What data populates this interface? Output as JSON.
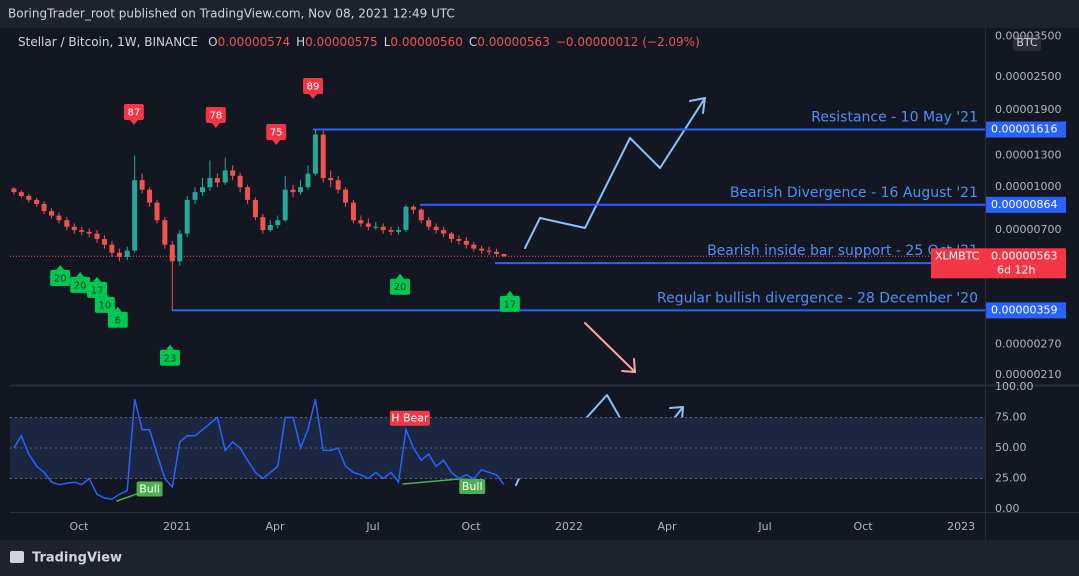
{
  "header": {
    "published": "BoringTrader_root published on TradingView.com, Nov 08, 2021 12:49 UTC",
    "symbol": "Stellar / Bitcoin, 1W, BINANCE",
    "ohlc": [
      {
        "key": "O",
        "value": "0.00000574"
      },
      {
        "key": "H",
        "value": "0.00000575"
      },
      {
        "key": "L",
        "value": "0.00000560"
      },
      {
        "key": "C",
        "value": "0.00000563"
      }
    ],
    "change": "−0.00000012 (−2.09%)",
    "currency": "BTC",
    "footer": "TradingView"
  },
  "chart_data": [
    {
      "type": "candlestick",
      "log_scale": true,
      "grid": false,
      "up_color": "#26a69a",
      "down_color": "#ef5350",
      "xlim": [
        2020.574,
        2023.061
      ],
      "ylim": [
        1.93e-06,
        3.76e-05
      ],
      "yticks": [
        {
          "value": 3.5e-05,
          "label": "0.00003500"
        },
        {
          "value": 2.5e-05,
          "label": "0.00002500"
        },
        {
          "value": 1.9e-05,
          "label": "0.00001900"
        },
        {
          "value": 1.3e-05,
          "label": "0.00001300"
        },
        {
          "value": 1e-05,
          "label": "0.00001000"
        },
        {
          "value": 7e-06,
          "label": "0.00000700"
        },
        {
          "value": 2.7e-06,
          "label": "0.00000270"
        },
        {
          "value": 2.1e-06,
          "label": "0.00000210"
        }
      ],
      "x": [
        2020.584,
        2020.603,
        2020.622,
        2020.642,
        2020.661,
        2020.68,
        2020.699,
        2020.719,
        2020.738,
        2020.757,
        2020.776,
        2020.796,
        2020.815,
        2020.834,
        2020.853,
        2020.873,
        2020.892,
        2020.911,
        2020.93,
        2020.949,
        2020.969,
        2020.988,
        2021.007,
        2021.026,
        2021.046,
        2021.065,
        2021.084,
        2021.103,
        2021.123,
        2021.142,
        2021.161,
        2021.18,
        2021.2,
        2021.219,
        2021.238,
        2021.257,
        2021.276,
        2021.296,
        2021.315,
        2021.334,
        2021.353,
        2021.373,
        2021.392,
        2021.411,
        2021.43,
        2021.45,
        2021.469,
        2021.488,
        2021.507,
        2021.526,
        2021.546,
        2021.565,
        2021.584,
        2021.603,
        2021.623,
        2021.642,
        2021.661,
        2021.68,
        2021.7,
        2021.719,
        2021.738,
        2021.757,
        2021.777,
        2021.796,
        2021.815,
        2021.834
      ],
      "open": [
        9.9e-06,
        9.6e-06,
        9.3e-06,
        9e-06,
        8.7e-06,
        8.2e-06,
        7.9e-06,
        7.6e-06,
        7.2e-06,
        7e-06,
        6.9e-06,
        6.8e-06,
        6.5e-06,
        6.2e-06,
        5.8e-06,
        5.6e-06,
        5.9e-06,
        1.06e-05,
        9.8e-06,
        8.8e-06,
        7.6e-06,
        6.2e-06,
        5.4e-06,
        6.8e-06,
        9e-06,
        9.6e-06,
        1e-05,
        1.08e-05,
        1.04e-05,
        1.15e-05,
        1.1e-05,
        1e-05,
        9e-06,
        7.8e-06,
        7e-06,
        7.3e-06,
        7.6e-06,
        9.8e-06,
        9.6e-06,
        1e-05,
        1.12e-05,
        1.55e-05,
        1.08e-05,
        1.06e-05,
        9.8e-06,
        8.8e-06,
        7.6e-06,
        7.4e-06,
        7.2e-06,
        7.2e-06,
        7e-06,
        6.9e-06,
        7e-06,
        8.5e-06,
        8.3e-06,
        7.6e-06,
        7.2e-06,
        7e-06,
        6.8e-06,
        6.5e-06,
        6.4e-06,
        6.2e-06,
        6e-06,
        5.9e-06,
        5.85e-06,
        5.74e-06
      ],
      "high": [
        1e-05,
        9.75e-06,
        9.45e-06,
        9.15e-06,
        8.9e-06,
        8.4e-06,
        8.1e-06,
        7.8e-06,
        7.4e-06,
        7.2e-06,
        7.1e-06,
        7e-06,
        6.7e-06,
        6.4e-06,
        6e-06,
        6.1e-06,
        1.3e-05,
        1.12e-05,
        1e-05,
        9e-06,
        7.8e-06,
        6.4e-06,
        7e-06,
        9.3e-06,
        1e-05,
        1.08e-05,
        1.25e-05,
        1.12e-05,
        1.28e-05,
        1.2e-05,
        1.13e-05,
        1.02e-05,
        9.2e-06,
        8e-06,
        7.6e-06,
        7.9e-06,
        1.1e-05,
        1.02e-05,
        1.06e-05,
        1.2e-05,
        1.616e-05,
        1.6e-05,
        1.15e-05,
        1.1e-05,
        1e-05,
        9e-06,
        7.9e-06,
        7.7e-06,
        7.5e-06,
        7.4e-06,
        7.2e-06,
        7.2e-06,
        8.64e-06,
        8.64e-06,
        8.4e-06,
        7.8e-06,
        7.4e-06,
        7.2e-06,
        6.9e-06,
        6.7e-06,
        6.6e-06,
        6.35e-06,
        6.15e-06,
        6.1e-06,
        6e-06,
        5.75e-06
      ],
      "low": [
        9.4e-06,
        9.15e-06,
        8.8e-06,
        8.5e-06,
        8e-06,
        7.7e-06,
        7.4e-06,
        7e-06,
        6.8e-06,
        6.7e-06,
        6.6e-06,
        6.3e-06,
        6e-06,
        5.6e-06,
        5.4e-06,
        5.45e-06,
        5.8e-06,
        9.5e-06,
        8.5e-06,
        7.4e-06,
        6e-06,
        3.59e-06,
        5.2e-06,
        6.6e-06,
        8.7e-06,
        9.3e-06,
        9.7e-06,
        1e-05,
        1.02e-05,
        1.06e-05,
        9.6e-06,
        8.7e-06,
        7.6e-06,
        6.8e-06,
        6.9e-06,
        7.1e-06,
        7.5e-06,
        9.2e-06,
        9.4e-06,
        9.8e-06,
        1.1e-05,
        1.04e-05,
        1e-05,
        9.5e-06,
        8.5e-06,
        7.4e-06,
        7.2e-06,
        7e-06,
        7e-06,
        6.8e-06,
        6.7e-06,
        6.75e-06,
        6.9e-06,
        8e-06,
        7.4e-06,
        7e-06,
        6.8e-06,
        6.6e-06,
        6.3e-06,
        6.2e-06,
        6e-06,
        5.85e-06,
        5.75e-06,
        5.7e-06,
        5.6e-06,
        5.6e-06
      ],
      "close": [
        9.6e-06,
        9.3e-06,
        9e-06,
        8.7e-06,
        8.2e-06,
        7.9e-06,
        7.6e-06,
        7.2e-06,
        7e-06,
        6.9e-06,
        6.8e-06,
        6.5e-06,
        6.2e-06,
        5.8e-06,
        5.6e-06,
        5.9e-06,
        1.06e-05,
        9.8e-06,
        8.8e-06,
        7.6e-06,
        6.2e-06,
        5.4e-06,
        6.8e-06,
        9e-06,
        9.6e-06,
        1e-05,
        1.08e-05,
        1.04e-05,
        1.15e-05,
        1.1e-05,
        1e-05,
        9e-06,
        7.8e-06,
        7e-06,
        7.3e-06,
        7.6e-06,
        9.8e-06,
        9.6e-06,
        1e-05,
        1.12e-05,
        1.55e-05,
        1.08e-05,
        1.06e-05,
        9.8e-06,
        8.8e-06,
        7.6e-06,
        7.4e-06,
        7.2e-06,
        7.2e-06,
        7e-06,
        6.9e-06,
        7e-06,
        8.5e-06,
        8.3e-06,
        7.6e-06,
        7.2e-06,
        7e-06,
        6.8e-06,
        6.5e-06,
        6.4e-06,
        6.2e-06,
        6e-06,
        5.9e-06,
        5.85e-06,
        5.74e-06,
        5.63e-06
      ],
      "price_tag": {
        "symbol": "XLMBTC",
        "countdown": "6d 12h"
      },
      "levels": [
        {
          "label": "Resistance - 10 May '21",
          "value": 1.616e-05,
          "x_start": 2021.347
        },
        {
          "label": "Bearish Divergence - 16 August '21",
          "value": 8.64e-06,
          "x_start": 2021.62
        },
        {
          "label": "Bearish inside bar support - 25 Oct '21",
          "value": 5.32e-06,
          "x_start": 2021.811
        },
        {
          "label": "Regular bullish divergence - 28 December '20",
          "value": 3.59e-06,
          "x_start": 2020.987
        }
      ],
      "markers": [
        {
          "text": "87",
          "kind": "high",
          "x": 2020.89,
          "y": 1.87e-05
        },
        {
          "text": "78",
          "kind": "high",
          "x": 2021.099,
          "y": 1.823e-05
        },
        {
          "text": "75",
          "kind": "high",
          "x": 2021.253,
          "y": 1.583e-05
        },
        {
          "text": "89",
          "kind": "high",
          "x": 2021.347,
          "y": 2.32e-05
        },
        {
          "text": "20",
          "kind": "low",
          "x": 2020.702,
          "y": 4.7e-06
        },
        {
          "text": "20",
          "kind": "low",
          "x": 2020.753,
          "y": 4.44e-06
        },
        {
          "text": "17",
          "kind": "low",
          "x": 2020.796,
          "y": 4.26e-06
        },
        {
          "text": "10",
          "kind": "low",
          "x": 2020.816,
          "y": 3.76e-06
        },
        {
          "text": "6",
          "kind": "low",
          "x": 2020.849,
          "y": 3.32e-06
        },
        {
          "text": "23",
          "kind": "low",
          "x": 2020.982,
          "y": 2.42e-06
        },
        {
          "text": "20",
          "kind": "low",
          "x": 2021.569,
          "y": 4.37e-06
        },
        {
          "text": "17",
          "kind": "low",
          "x": 2021.849,
          "y": 3.79e-06
        }
      ]
    },
    {
      "type": "line",
      "grid": false,
      "color": "#2962ff",
      "xlim": [
        2020.574,
        2023.061
      ],
      "ylim": [
        -2.5,
        100
      ],
      "xticks": [
        {
          "value": 2020.75,
          "label": "Oct"
        },
        2021,
        {
          "value": 2021.25,
          "label": "Apr"
        },
        {
          "value": 2021.5,
          "label": "Jul"
        },
        {
          "value": 2021.75,
          "label": "Oct"
        },
        2022,
        {
          "value": 2022.25,
          "label": "Apr"
        },
        {
          "value": 2022.5,
          "label": "Jul"
        },
        {
          "value": 2022.75,
          "label": "Oct"
        },
        2023
      ],
      "yticks": [
        {
          "value": 100,
          "label": "100.00"
        },
        {
          "value": 75,
          "label": "75.00"
        },
        {
          "value": 50,
          "label": "50.00"
        },
        {
          "value": 25,
          "label": "25.00"
        },
        {
          "value": 0,
          "label": "0.00"
        }
      ],
      "band": [
        25,
        75
      ],
      "midline": 50,
      "values": [
        50,
        60,
        45,
        35,
        30,
        22,
        20,
        21,
        22,
        20,
        25,
        12,
        9,
        8,
        12,
        15,
        90,
        65,
        65,
        45,
        25,
        18,
        55,
        60,
        60,
        65,
        70,
        75,
        48,
        55,
        50,
        40,
        30,
        25,
        30,
        35,
        75,
        75,
        50,
        65,
        90,
        48,
        48,
        50,
        35,
        30,
        28,
        25,
        30,
        25,
        30,
        22,
        65,
        50,
        40,
        45,
        35,
        40,
        30,
        25,
        28,
        25,
        32,
        30,
        28,
        20
      ],
      "annotations": [
        {
          "text": "Bull",
          "kind": "bull",
          "x": 2020.93,
          "y": 16
        },
        {
          "text": "H Bear",
          "kind": "bear",
          "x": 2021.594,
          "y": 74
        },
        {
          "text": "Bull",
          "kind": "bull",
          "x": 2021.753,
          "y": 18
        }
      ]
    }
  ]
}
